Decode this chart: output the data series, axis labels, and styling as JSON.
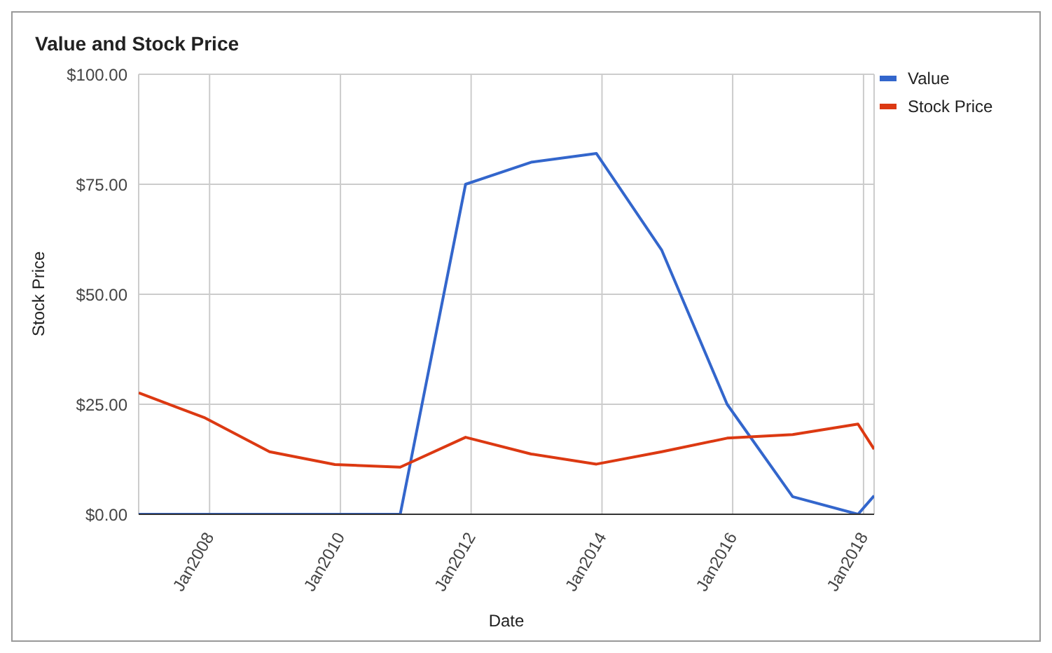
{
  "chart_data": {
    "type": "line",
    "title": "Value and Stock Price",
    "xlabel": "Date",
    "ylabel": "Stock Price",
    "x": [
      "2006-12",
      "2007-12",
      "2008-12",
      "2009-12",
      "2010-12",
      "2011-12",
      "2012-12",
      "2013-12",
      "2014-12",
      "2015-12",
      "2016-12",
      "2017-12",
      "2018-03"
    ],
    "series": [
      {
        "name": "Value",
        "color": "#3366cc",
        "values": [
          0,
          0,
          0,
          0,
          0,
          75,
          80,
          82,
          60,
          25,
          4,
          0,
          4.2
        ]
      },
      {
        "name": "Stock Price",
        "color": "#dc3912",
        "values": [
          27.6,
          22.0,
          14.2,
          11.3,
          10.7,
          17.5,
          13.7,
          11.4,
          14.2,
          17.3,
          18.1,
          20.5,
          14.8
        ]
      }
    ],
    "xlim": [
      "2006-12",
      "2018-03"
    ],
    "xticks": [
      {
        "value": "2008-01",
        "label": "Jan2008"
      },
      {
        "value": "2010-01",
        "label": "Jan2010"
      },
      {
        "value": "2012-01",
        "label": "Jan2012"
      },
      {
        "value": "2014-01",
        "label": "Jan2014"
      },
      {
        "value": "2016-01",
        "label": "Jan2016"
      },
      {
        "value": "2018-01",
        "label": "Jan2018"
      }
    ],
    "ylim": [
      0,
      100
    ],
    "yticks": [
      {
        "value": 0,
        "label": "$0.00"
      },
      {
        "value": 25,
        "label": "$25.00"
      },
      {
        "value": 50,
        "label": "$50.00"
      },
      {
        "value": 75,
        "label": "$75.00"
      },
      {
        "value": 100,
        "label": "$100.00"
      }
    ],
    "grid": true,
    "legend": "top right",
    "marker": "none",
    "line_style": "solid"
  }
}
